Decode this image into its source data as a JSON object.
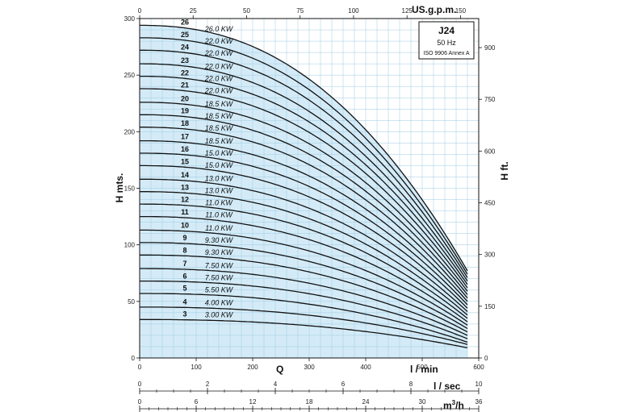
{
  "chart_data": {
    "type": "line",
    "model": "J24",
    "frequency": "50 Hz",
    "standard": "ISO 9906 Annex A",
    "left_axis": {
      "label": "H mts.",
      "ylim": [
        0,
        300
      ],
      "ticks": [
        "0",
        "50",
        "100",
        "150",
        "200",
        "250",
        "300"
      ]
    },
    "right_axis": {
      "label": "H ft.",
      "ticks": [
        "0",
        "150",
        "300",
        "450",
        "600",
        "750",
        "900"
      ]
    },
    "top_axis": {
      "label": "US.g.p.m.",
      "ticks": [
        "0",
        "25",
        "50",
        "75",
        "100",
        "125",
        "150"
      ]
    },
    "bottom_axis": {
      "label": "l / min",
      "xlim": [
        0,
        600
      ],
      "ticks": [
        "0",
        "100",
        "200",
        "300",
        "400",
        "500",
        "600"
      ]
    },
    "q_label": "Q",
    "lsec_axis": {
      "label": "l / sec",
      "ticks": [
        "0",
        "2",
        "4",
        "6",
        "8",
        "10"
      ]
    },
    "m3h_axis": {
      "label": "m³/h",
      "label_main": "m",
      "label_sup": "3",
      "label_tail": "/h",
      "ticks": [
        "0",
        "6",
        "12",
        "18",
        "24",
        "30",
        "36"
      ]
    },
    "series": [
      {
        "name": "26",
        "power": "26.0 KW",
        "shutoff_head": 294,
        "head_at_580": 77
      },
      {
        "name": "25",
        "power": "22.0 KW",
        "shutoff_head": 283,
        "head_at_580": 74
      },
      {
        "name": "24",
        "power": "22.0 KW",
        "shutoff_head": 272,
        "head_at_580": 71
      },
      {
        "name": "23",
        "power": "22.0 KW",
        "shutoff_head": 260,
        "head_at_580": 68
      },
      {
        "name": "22",
        "power": "22.0 KW",
        "shutoff_head": 249,
        "head_at_580": 65
      },
      {
        "name": "21",
        "power": "22.0 KW",
        "shutoff_head": 238,
        "head_at_580": 62
      },
      {
        "name": "20",
        "power": "18.5 KW",
        "shutoff_head": 226,
        "head_at_580": 59
      },
      {
        "name": "19",
        "power": "18.5 KW",
        "shutoff_head": 215,
        "head_at_580": 56
      },
      {
        "name": "18",
        "power": "18.5 KW",
        "shutoff_head": 204,
        "head_at_580": 53
      },
      {
        "name": "17",
        "power": "18.5 KW",
        "shutoff_head": 192,
        "head_at_580": 50
      },
      {
        "name": "16",
        "power": "15.0 KW",
        "shutoff_head": 181,
        "head_at_580": 47
      },
      {
        "name": "15",
        "power": "15.0 KW",
        "shutoff_head": 170,
        "head_at_580": 44
      },
      {
        "name": "14",
        "power": "13.0 KW",
        "shutoff_head": 158,
        "head_at_580": 41
      },
      {
        "name": "13",
        "power": "13.0 KW",
        "shutoff_head": 147,
        "head_at_580": 38
      },
      {
        "name": "12",
        "power": "11.0 KW",
        "shutoff_head": 136,
        "head_at_580": 35
      },
      {
        "name": "11",
        "power": "11.0 KW",
        "shutoff_head": 125,
        "head_at_580": 32
      },
      {
        "name": "10",
        "power": "11.0 KW",
        "shutoff_head": 113,
        "head_at_580": 29
      },
      {
        "name": "9",
        "power": "9.30 KW",
        "shutoff_head": 102,
        "head_at_580": 26
      },
      {
        "name": "8",
        "power": "9.30 KW",
        "shutoff_head": 91,
        "head_at_580": 23
      },
      {
        "name": "7",
        "power": "7.50 KW",
        "shutoff_head": 79,
        "head_at_580": 20
      },
      {
        "name": "6",
        "power": "7.50 KW",
        "shutoff_head": 68,
        "head_at_580": 17
      },
      {
        "name": "5",
        "power": "5.50 KW",
        "shutoff_head": 57,
        "head_at_580": 14
      },
      {
        "name": "4",
        "power": "4.00 KW",
        "shutoff_head": 45,
        "head_at_580": 12
      },
      {
        "name": "3",
        "power": "3.00 KW",
        "shutoff_head": 34,
        "head_at_580": 9
      }
    ],
    "grid": true,
    "colors": {
      "fill": "#d4ebf7",
      "grid": "#9ecbe3",
      "curve": "#111111"
    }
  }
}
